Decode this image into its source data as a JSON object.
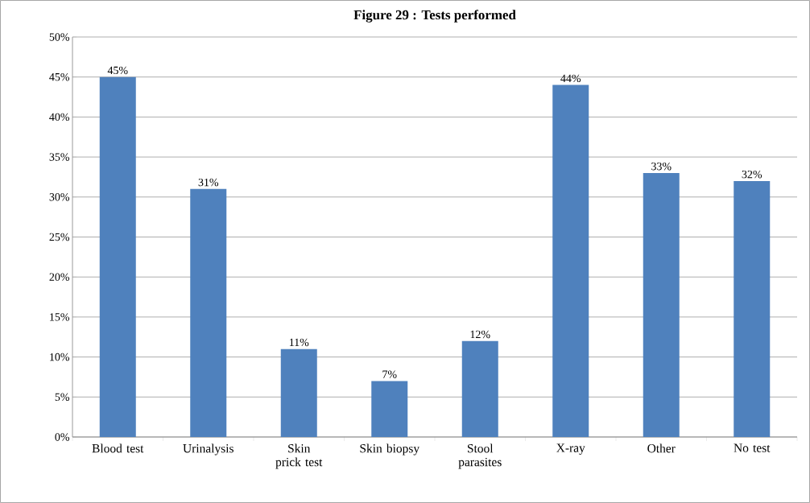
{
  "chart_data": {
    "type": "bar",
    "title": "Figure 29 : Tests performed",
    "categories": [
      "Blood test",
      "Urinalysis",
      "Skin prick test",
      "Skin biopsy",
      "Stool parasites",
      "X-ray",
      "Other",
      "No test"
    ],
    "values": [
      45,
      31,
      11,
      7,
      12,
      44,
      33,
      32
    ],
    "value_labels": [
      "45%",
      "31%",
      "11%",
      "7%",
      "12%",
      "44%",
      "33%",
      "32%"
    ],
    "color": "#4f81bd",
    "ylim": [
      0,
      50
    ],
    "yticks": [
      {
        "value": 0,
        "label": "0%"
      },
      {
        "value": 5,
        "label": "5%"
      },
      {
        "value": 10,
        "label": "10%"
      },
      {
        "value": 15,
        "label": "15%"
      },
      {
        "value": 20,
        "label": "20%"
      },
      {
        "value": 25,
        "label": "25%"
      },
      {
        "value": 30,
        "label": "30%"
      },
      {
        "value": 35,
        "label": "35%"
      },
      {
        "value": 40,
        "label": "40%"
      },
      {
        "value": 45,
        "label": "45%"
      },
      {
        "value": 50,
        "label": "50%"
      }
    ],
    "grid": "y"
  }
}
